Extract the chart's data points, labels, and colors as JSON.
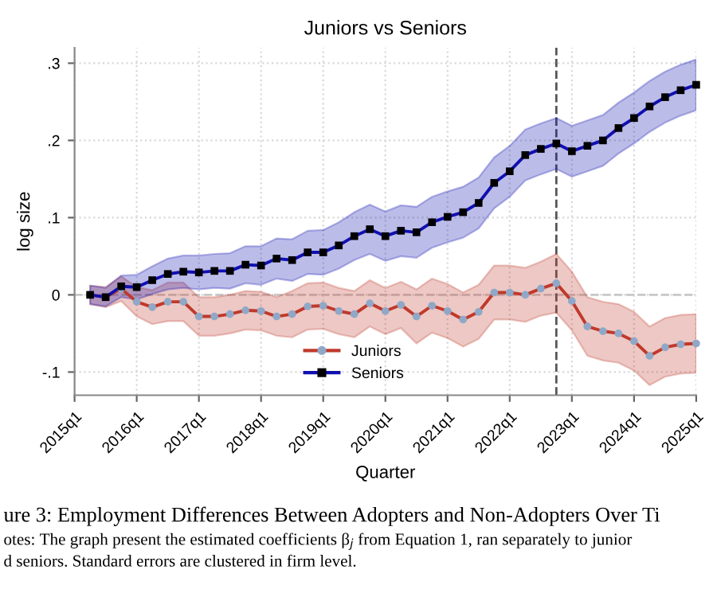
{
  "chart_data": {
    "type": "line",
    "title": "Juniors vs Seniors",
    "xlabel": "Quarter",
    "ylabel": "log size",
    "categories": [
      "2015q1",
      null,
      null,
      null,
      "2016q1",
      null,
      null,
      null,
      "2017q1",
      null,
      null,
      null,
      "2018q1",
      null,
      null,
      null,
      "2019q1",
      null,
      null,
      null,
      "2020q1",
      null,
      null,
      null,
      "2021q1",
      null,
      null,
      null,
      "2022q1",
      null,
      null,
      null,
      "2023q1",
      null,
      null,
      null,
      "2024q1",
      null,
      null,
      null,
      "2025q1"
    ],
    "series": [
      {
        "name": "Juniors",
        "color": "#c0392b",
        "marker": "circle",
        "colors": [
          "#8fa8c8",
          "#8fa8c8",
          "#8fa8c8",
          "#8fa8c8",
          "#8fa8c8",
          "#8fa8c8",
          "#8fa8c8",
          "#8fa8c8",
          "#8fa8c8",
          "#8fa8c8",
          "#8fa8c8",
          "#8fa8c8",
          "#8fa8c8",
          "#8fa8c8",
          "#8fa8c8",
          "#8fa8c8",
          "#8fa8c8",
          "#8fa8c8",
          "#8fa8c8",
          "#8fa8c8",
          "#8fa8c8",
          "#8fa8c8",
          "#8fa8c8",
          "#8fa8c8",
          "#8fa8c8",
          "#8fa8c8",
          "#8fa8c8",
          "#8fa8c8",
          "#8fa8c8",
          "#8fa8c8",
          "#8fa8c8",
          "#8fa8c8",
          "#8fa8c8",
          "#8fa8c8",
          "#8fa8c8",
          "#8fa8c8",
          "#8fa8c8",
          "#8fa8c8",
          "#8fa8c8",
          "#8fa8c8",
          "#8fa8c8"
        ],
        "values": [
          null,
          0,
          -0.003,
          0.008,
          -0.009,
          -0.016,
          -0.009,
          -0.009,
          -0.028,
          -0.028,
          -0.025,
          -0.02,
          -0.021,
          -0.028,
          -0.025,
          -0.015,
          -0.014,
          -0.021,
          -0.025,
          -0.011,
          -0.021,
          -0.013,
          -0.028,
          -0.014,
          -0.021,
          -0.032,
          -0.022,
          0.003,
          0.003,
          0.0,
          0.008,
          0.015,
          -0.008,
          -0.041,
          -0.047,
          -0.05,
          -0.06,
          -0.079,
          -0.068,
          -0.064,
          -0.063
        ],
        "lower": [
          null,
          -0.012,
          -0.016,
          -0.008,
          -0.028,
          -0.038,
          -0.034,
          -0.034,
          -0.053,
          -0.053,
          -0.05,
          -0.045,
          -0.046,
          -0.053,
          -0.055,
          -0.045,
          -0.044,
          -0.051,
          -0.055,
          -0.041,
          -0.051,
          -0.043,
          -0.063,
          -0.049,
          -0.056,
          -0.067,
          -0.057,
          -0.032,
          -0.032,
          -0.035,
          -0.027,
          -0.023,
          -0.046,
          -0.079,
          -0.085,
          -0.088,
          -0.098,
          -0.117,
          -0.106,
          -0.102,
          -0.101
        ],
        "upper": [
          null,
          0.012,
          0.01,
          0.024,
          0.01,
          0.006,
          0.016,
          0.016,
          -0.003,
          -0.003,
          0.0,
          0.005,
          0.004,
          -0.003,
          0.005,
          0.015,
          0.016,
          0.009,
          0.005,
          0.019,
          0.009,
          0.017,
          0.007,
          0.021,
          0.014,
          0.003,
          0.013,
          0.038,
          0.038,
          0.035,
          0.043,
          0.053,
          0.03,
          -0.003,
          -0.009,
          -0.012,
          -0.022,
          -0.041,
          -0.03,
          -0.026,
          -0.025
        ]
      },
      {
        "name": "Seniors",
        "color": "#1010b0",
        "marker": "square",
        "colors": [
          "#000000",
          "#000000",
          "#000000",
          "#000000",
          "#000000",
          "#000000",
          "#000000",
          "#000000",
          "#000000",
          "#000000",
          "#000000",
          "#000000",
          "#000000",
          "#000000",
          "#000000",
          "#000000",
          "#000000",
          "#000000",
          "#000000",
          "#000000",
          "#000000",
          "#000000",
          "#000000",
          "#000000",
          "#000000",
          "#000000",
          "#000000",
          "#000000",
          "#000000",
          "#000000",
          "#000000",
          "#000000",
          "#000000",
          "#000000",
          "#000000",
          "#000000",
          "#000000",
          "#000000",
          "#000000",
          "#000000",
          "#000000"
        ],
        "values": [
          null,
          0,
          -0.003,
          0.011,
          0.01,
          0.019,
          0.027,
          0.03,
          0.029,
          0.031,
          0.031,
          0.039,
          0.038,
          0.047,
          0.045,
          0.055,
          0.055,
          0.064,
          0.076,
          0.085,
          0.076,
          0.083,
          0.081,
          0.094,
          0.101,
          0.107,
          0.119,
          0.145,
          0.16,
          0.181,
          0.189,
          0.196,
          0.186,
          0.193,
          0.2,
          0.216,
          0.229,
          0.244,
          0.256,
          0.265,
          0.272
        ],
        "lower": [
          null,
          -0.012,
          -0.015,
          -0.003,
          -0.006,
          0.001,
          0.007,
          0.009,
          0.007,
          0.009,
          0.008,
          0.015,
          0.013,
          0.021,
          0.018,
          0.027,
          0.026,
          0.034,
          0.045,
          0.053,
          0.044,
          0.05,
          0.048,
          0.061,
          0.068,
          0.074,
          0.086,
          0.112,
          0.127,
          0.148,
          0.156,
          0.163,
          0.153,
          0.16,
          0.167,
          0.183,
          0.196,
          0.211,
          0.223,
          0.232,
          0.239
        ],
        "upper": [
          null,
          0.012,
          0.009,
          0.025,
          0.026,
          0.037,
          0.047,
          0.051,
          0.051,
          0.053,
          0.054,
          0.063,
          0.063,
          0.073,
          0.072,
          0.083,
          0.084,
          0.094,
          0.107,
          0.117,
          0.108,
          0.116,
          0.114,
          0.127,
          0.134,
          0.14,
          0.152,
          0.178,
          0.193,
          0.214,
          0.222,
          0.229,
          0.219,
          0.226,
          0.233,
          0.249,
          0.262,
          0.277,
          0.289,
          0.298,
          0.305
        ]
      }
    ],
    "ylim": [
      -0.13,
      0.32
    ],
    "yticks": [
      {
        "value": -0.1,
        "label": "-.1"
      },
      0,
      {
        "value": 0.1,
        "label": ".1"
      },
      {
        "value": 0.2,
        "label": ".2"
      },
      {
        "value": 0.3,
        "label": ".3"
      }
    ],
    "ref_lines": [
      {
        "axis": "y",
        "value": 0,
        "color": "#c8c8c8",
        "line_style": "dashed"
      }
    ],
    "grid": true,
    "legend": "bottom",
    "line_style": "solid",
    "annotations": [
      "ure 3: Employment Differences Between Adopters and Non-Adopters Over Ti",
      "otes: The graph present the estimated coefficients β$_{j}$ from Equation 1, ran separately to junior",
      "d seniors. Standard errors are clustered in firm level."
    ]
  }
}
